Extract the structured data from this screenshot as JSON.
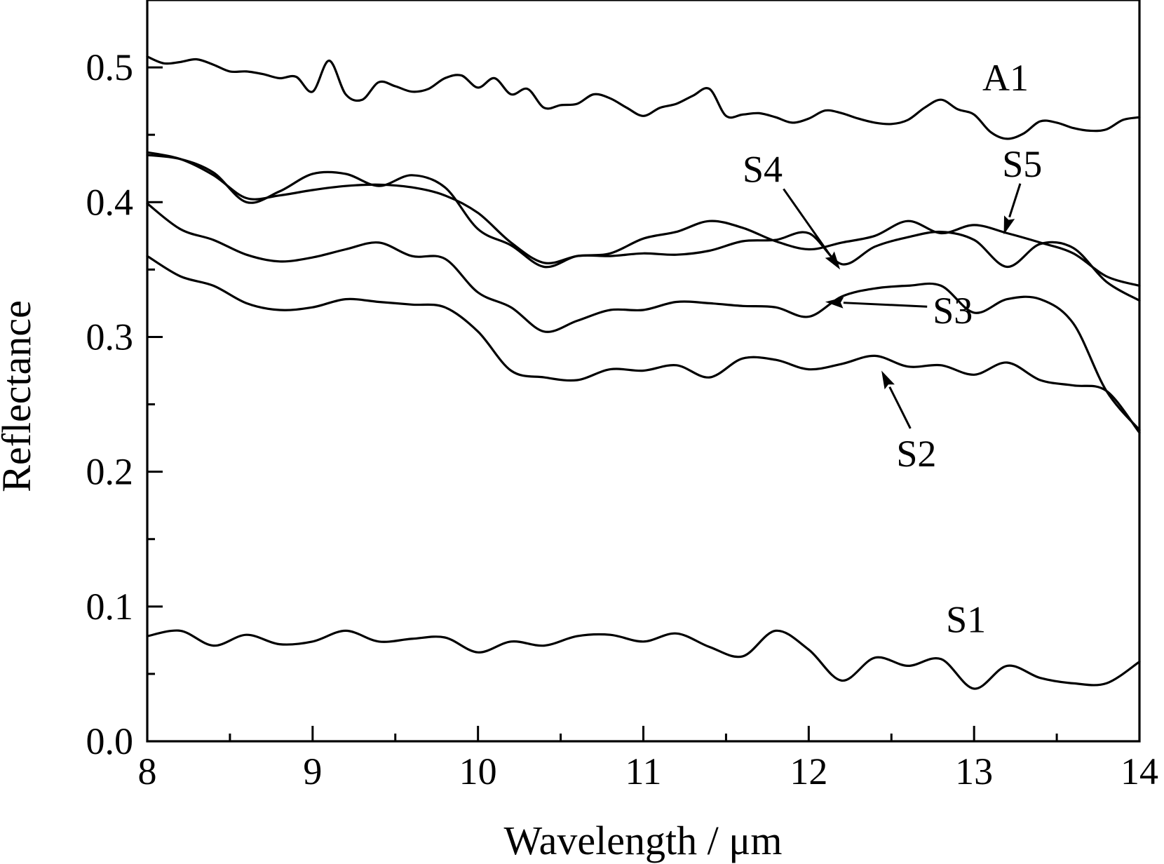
{
  "chart_data": {
    "type": "line",
    "xlabel": "Wavelength / μm",
    "ylabel": "Reflectance",
    "xlim": [
      8,
      14
    ],
    "ylim": [
      0.0,
      0.55
    ],
    "x_ticks": [
      8,
      9,
      10,
      11,
      12,
      13,
      14
    ],
    "x_tick_labels": [
      "8",
      "9",
      "10",
      "11",
      "12",
      "13",
      "14"
    ],
    "y_ticks": [
      0.0,
      0.1,
      0.2,
      0.3,
      0.4,
      0.5
    ],
    "y_tick_labels": [
      "0.0",
      "0.1",
      "0.2",
      "0.3",
      "0.4",
      "0.5"
    ],
    "grid": false,
    "legend": "none",
    "series": [
      {
        "name": "A1",
        "x": [
          8.0,
          8.1,
          8.2,
          8.3,
          8.4,
          8.5,
          8.6,
          8.7,
          8.8,
          8.9,
          9.0,
          9.1,
          9.2,
          9.3,
          9.4,
          9.5,
          9.6,
          9.7,
          9.8,
          9.9,
          10.0,
          10.1,
          10.2,
          10.3,
          10.4,
          10.5,
          10.6,
          10.7,
          10.8,
          10.9,
          11.0,
          11.1,
          11.2,
          11.3,
          11.4,
          11.5,
          11.6,
          11.7,
          11.8,
          11.9,
          12.0,
          12.1,
          12.2,
          12.3,
          12.4,
          12.5,
          12.6,
          12.7,
          12.8,
          12.9,
          13.0,
          13.1,
          13.2,
          13.3,
          13.4,
          13.5,
          13.6,
          13.7,
          13.8,
          13.9,
          14.0
        ],
        "values": [
          0.508,
          0.503,
          0.504,
          0.506,
          0.502,
          0.497,
          0.497,
          0.495,
          0.492,
          0.493,
          0.482,
          0.505,
          0.48,
          0.476,
          0.489,
          0.486,
          0.482,
          0.484,
          0.492,
          0.494,
          0.485,
          0.492,
          0.48,
          0.484,
          0.47,
          0.472,
          0.473,
          0.48,
          0.477,
          0.47,
          0.464,
          0.47,
          0.473,
          0.479,
          0.484,
          0.464,
          0.465,
          0.466,
          0.463,
          0.459,
          0.462,
          0.468,
          0.466,
          0.462,
          0.459,
          0.458,
          0.461,
          0.47,
          0.476,
          0.469,
          0.465,
          0.452,
          0.447,
          0.451,
          0.46,
          0.459,
          0.455,
          0.453,
          0.454,
          0.461,
          0.463
        ]
      },
      {
        "name": "S5",
        "x": [
          8.0,
          8.2,
          8.4,
          8.6,
          8.8,
          9.0,
          9.2,
          9.4,
          9.6,
          9.8,
          10.0,
          10.2,
          10.4,
          10.6,
          10.8,
          11.0,
          11.2,
          11.4,
          11.6,
          11.8,
          12.0,
          12.2,
          12.4,
          12.6,
          12.8,
          13.0,
          13.2,
          13.4,
          13.6,
          13.8,
          14.0
        ],
        "values": [
          0.437,
          0.432,
          0.42,
          0.403,
          0.405,
          0.409,
          0.412,
          0.413,
          0.411,
          0.405,
          0.392,
          0.37,
          0.355,
          0.36,
          0.362,
          0.373,
          0.378,
          0.386,
          0.381,
          0.371,
          0.365,
          0.37,
          0.375,
          0.386,
          0.377,
          0.383,
          0.377,
          0.37,
          0.362,
          0.345,
          0.338
        ]
      },
      {
        "name": "S4",
        "x": [
          8.0,
          8.2,
          8.4,
          8.6,
          8.8,
          9.0,
          9.2,
          9.4,
          9.6,
          9.8,
          10.0,
          10.2,
          10.4,
          10.6,
          10.8,
          11.0,
          11.2,
          11.4,
          11.6,
          11.8,
          12.0,
          12.2,
          12.4,
          12.6,
          12.8,
          13.0,
          13.2,
          13.4,
          13.6,
          13.8,
          14.0
        ],
        "values": [
          0.435,
          0.432,
          0.422,
          0.4,
          0.408,
          0.421,
          0.421,
          0.412,
          0.42,
          0.411,
          0.38,
          0.368,
          0.352,
          0.36,
          0.36,
          0.362,
          0.361,
          0.364,
          0.371,
          0.372,
          0.377,
          0.354,
          0.367,
          0.374,
          0.378,
          0.372,
          0.352,
          0.369,
          0.366,
          0.341,
          0.327
        ]
      },
      {
        "name": "S3",
        "x": [
          8.0,
          8.2,
          8.4,
          8.6,
          8.8,
          9.0,
          9.2,
          9.4,
          9.6,
          9.8,
          10.0,
          10.2,
          10.4,
          10.6,
          10.8,
          11.0,
          11.2,
          11.4,
          11.6,
          11.8,
          12.0,
          12.2,
          12.4,
          12.6,
          12.8,
          13.0,
          13.2,
          13.4,
          13.6,
          13.8,
          14.0
        ],
        "values": [
          0.399,
          0.38,
          0.372,
          0.361,
          0.356,
          0.359,
          0.365,
          0.37,
          0.36,
          0.358,
          0.333,
          0.322,
          0.304,
          0.312,
          0.32,
          0.32,
          0.326,
          0.325,
          0.323,
          0.322,
          0.315,
          0.33,
          0.336,
          0.338,
          0.338,
          0.318,
          0.328,
          0.328,
          0.31,
          0.26,
          0.231
        ]
      },
      {
        "name": "S2",
        "x": [
          8.0,
          8.2,
          8.4,
          8.6,
          8.8,
          9.0,
          9.2,
          9.4,
          9.6,
          9.8,
          10.0,
          10.2,
          10.4,
          10.6,
          10.8,
          11.0,
          11.2,
          11.4,
          11.6,
          11.8,
          12.0,
          12.2,
          12.4,
          12.6,
          12.8,
          13.0,
          13.2,
          13.4,
          13.6,
          13.8,
          14.0
        ],
        "values": [
          0.36,
          0.345,
          0.338,
          0.325,
          0.32,
          0.322,
          0.328,
          0.326,
          0.324,
          0.322,
          0.304,
          0.275,
          0.27,
          0.268,
          0.276,
          0.275,
          0.279,
          0.27,
          0.284,
          0.283,
          0.276,
          0.28,
          0.286,
          0.278,
          0.279,
          0.272,
          0.281,
          0.268,
          0.264,
          0.26,
          0.229
        ]
      },
      {
        "name": "S1",
        "x": [
          8.0,
          8.2,
          8.4,
          8.6,
          8.8,
          9.0,
          9.2,
          9.4,
          9.6,
          9.8,
          10.0,
          10.2,
          10.4,
          10.6,
          10.8,
          11.0,
          11.2,
          11.4,
          11.6,
          11.8,
          12.0,
          12.2,
          12.4,
          12.6,
          12.8,
          13.0,
          13.2,
          13.4,
          13.6,
          13.8,
          14.0
        ],
        "values": [
          0.078,
          0.082,
          0.071,
          0.079,
          0.072,
          0.074,
          0.082,
          0.074,
          0.076,
          0.077,
          0.066,
          0.074,
          0.071,
          0.078,
          0.079,
          0.074,
          0.08,
          0.07,
          0.063,
          0.082,
          0.068,
          0.045,
          0.062,
          0.056,
          0.061,
          0.039,
          0.056,
          0.047,
          0.043,
          0.043,
          0.059
        ]
      }
    ],
    "annotations": [
      {
        "text": "A1",
        "x": 13.05,
        "y": 0.483,
        "arrow": false
      },
      {
        "text": "S5",
        "x": 13.17,
        "y": 0.419,
        "arrow": true,
        "arrow_to": [
          13.18,
          0.376
        ]
      },
      {
        "text": "S4",
        "x": 11.6,
        "y": 0.415,
        "arrow": true,
        "arrow_to": [
          12.19,
          0.35
        ]
      },
      {
        "text": "S3",
        "x": 12.75,
        "y": 0.31,
        "arrow": true,
        "arrow_to": [
          12.1,
          0.326
        ]
      },
      {
        "text": "S2",
        "x": 12.53,
        "y": 0.204,
        "arrow": true,
        "arrow_to": [
          12.44,
          0.275
        ]
      },
      {
        "text": "S1",
        "x": 12.83,
        "y": 0.081,
        "arrow": false
      }
    ]
  }
}
